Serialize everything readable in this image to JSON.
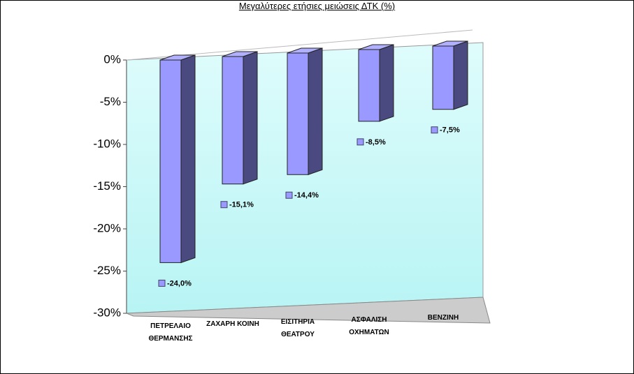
{
  "chart_data": {
    "type": "bar3d",
    "title": "Μεγαλύτερες ετήσιες μειώσεις ΔΤΚ (%)",
    "categories": [
      "ΠΕΤΡΕΛΑΙΟ ΘΕΡΜΑΝΣΗΣ",
      "ΖΑΧΑΡΗ ΚΟΙΝΗ",
      "ΕΙΣΙΤΗΡΙΑ ΘΕΑΤΡΟΥ",
      "ΑΣΦΑΛΙΣΗ ΟΧΗΜΑΤΩΝ",
      "ΒΕΝΖΙΝΗ"
    ],
    "values": [
      -24.0,
      -15.1,
      -14.4,
      -8.5,
      -7.5
    ],
    "value_labels": [
      "-24,0%",
      "-15,1%",
      "-14,4%",
      "-8,5%",
      "-7,5%"
    ],
    "color": "#9999ff",
    "ylim": [
      -30,
      0
    ],
    "yticks": [
      {
        "value": 0,
        "label": "0%"
      },
      {
        "value": -5,
        "label": "-5%"
      },
      {
        "value": -10,
        "label": "-10%"
      },
      {
        "value": -15,
        "label": "-15%"
      },
      {
        "value": -20,
        "label": "-20%"
      },
      {
        "value": -25,
        "label": "-25%"
      },
      {
        "value": -30,
        "label": "-30%"
      }
    ]
  }
}
